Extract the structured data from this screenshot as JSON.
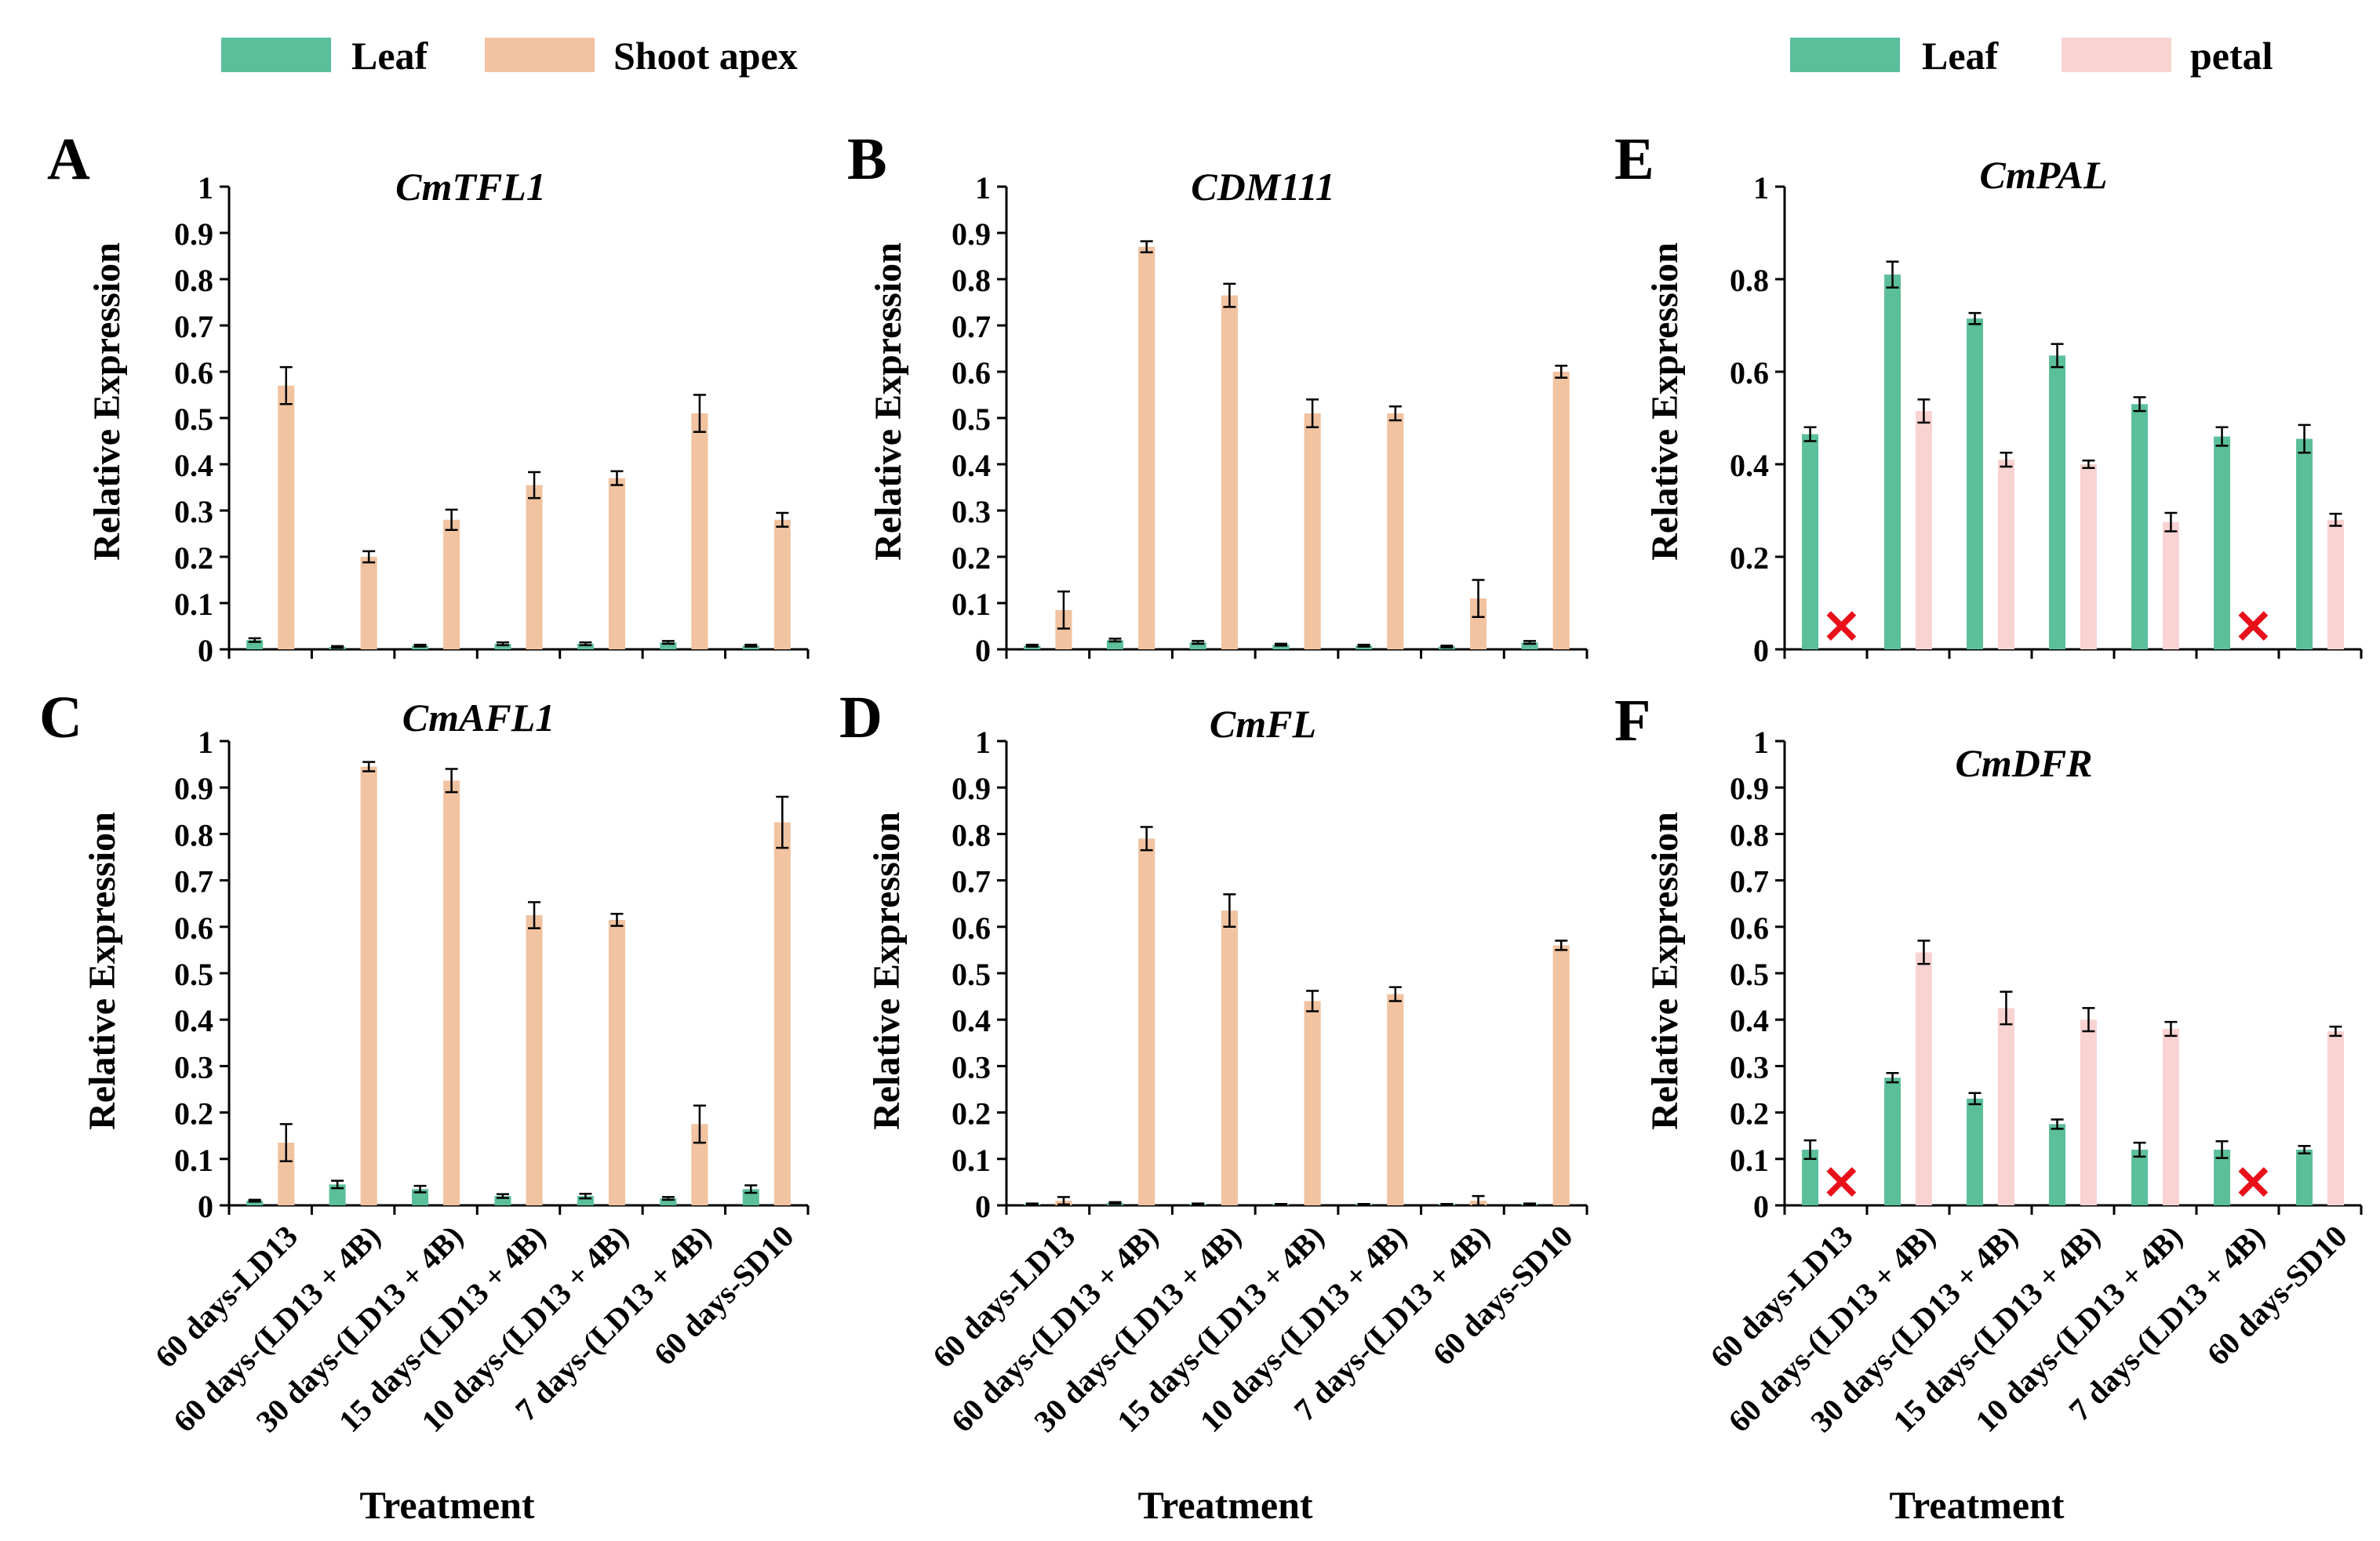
{
  "legends": {
    "left": [
      {
        "label": "Leaf",
        "color": "#5bbf9a"
      },
      {
        "label": "Shoot apex",
        "color": "#f1c3a1"
      }
    ],
    "right": [
      {
        "label": "Leaf",
        "color": "#5bbf9a"
      },
      {
        "label": "petal",
        "color": "#f9d2d2"
      }
    ]
  },
  "xlabel": "Treatment",
  "ylabel": "Relative Expression",
  "chart_data": [
    {
      "panel": "A",
      "title": "CmTFL1",
      "type": "bar",
      "categories": [
        "60 days-LD13",
        "60 days-(LD13 + 4B)",
        "30 days-(LD13 + 4B)",
        "15 days-(LD13 + 4B)",
        "10 days-(LD13 + 4B)",
        "7 days-(LD13 + 4B)",
        "60 days-SD10"
      ],
      "ylim": [
        0,
        1
      ],
      "yticks": [
        "0",
        "0.1",
        "0.2",
        "0.3",
        "0.4",
        "0.5",
        "0.6",
        "0.7",
        "0.8",
        "0.9",
        "1"
      ],
      "xlabel": "",
      "ylabel": "Relative Expression",
      "series": [
        {
          "name": "Leaf",
          "values": [
            0.02,
            0.005,
            0.008,
            0.012,
            0.012,
            0.015,
            0.008
          ],
          "errors": [
            0.004,
            0.002,
            0.002,
            0.003,
            0.003,
            0.003,
            0.002
          ]
        },
        {
          "name": "Shoot apex",
          "values": [
            0.57,
            0.2,
            0.28,
            0.355,
            0.37,
            0.51,
            0.28
          ],
          "errors": [
            0.04,
            0.012,
            0.022,
            0.028,
            0.015,
            0.04,
            0.015
          ]
        }
      ]
    },
    {
      "panel": "B",
      "title": "CDM111",
      "type": "bar",
      "categories": [
        "60 days-LD13",
        "60 days-(LD13 + 4B)",
        "30 days-(LD13 + 4B)",
        "15 days-(LD13 + 4B)",
        "10 days-(LD13 + 4B)",
        "7 days-(LD13 + 4B)",
        "60 days-SD10"
      ],
      "ylim": [
        0,
        1
      ],
      "yticks": [
        "0",
        "0.1",
        "0.2",
        "0.3",
        "0.4",
        "0.5",
        "0.6",
        "0.7",
        "0.8",
        "0.9",
        "1"
      ],
      "xlabel": "",
      "ylabel": "Relative Expression",
      "series": [
        {
          "name": "Leaf",
          "values": [
            0.008,
            0.02,
            0.015,
            0.01,
            0.008,
            0.006,
            0.015
          ],
          "errors": [
            0.002,
            0.003,
            0.003,
            0.002,
            0.002,
            0.002,
            0.003
          ]
        },
        {
          "name": "Shoot apex",
          "values": [
            0.085,
            0.87,
            0.765,
            0.51,
            0.51,
            0.11,
            0.6
          ],
          "errors": [
            0.04,
            0.012,
            0.025,
            0.03,
            0.015,
            0.04,
            0.013
          ]
        }
      ]
    },
    {
      "panel": "C",
      "title": "CmAFL1",
      "type": "bar",
      "categories": [
        "60 days-LD13",
        "60 days-(LD13 + 4B)",
        "30 days-(LD13 + 4B)",
        "15 days-(LD13 + 4B)",
        "10 days-(LD13 + 4B)",
        "7 days-(LD13 + 4B)",
        "60 days-SD10"
      ],
      "ylim": [
        0,
        1
      ],
      "yticks": [
        "0",
        "0.1",
        "0.2",
        "0.3",
        "0.4",
        "0.5",
        "0.6",
        "0.7",
        "0.8",
        "0.9",
        "1"
      ],
      "xlabel": "Treatment",
      "ylabel": "Relative Expression",
      "series": [
        {
          "name": "Leaf",
          "values": [
            0.01,
            0.045,
            0.035,
            0.02,
            0.02,
            0.015,
            0.035
          ],
          "errors": [
            0.002,
            0.008,
            0.007,
            0.004,
            0.005,
            0.003,
            0.008
          ]
        },
        {
          "name": "Shoot apex",
          "values": [
            0.135,
            0.945,
            0.915,
            0.625,
            0.615,
            0.175,
            0.825
          ],
          "errors": [
            0.04,
            0.01,
            0.025,
            0.028,
            0.013,
            0.04,
            0.055
          ]
        }
      ]
    },
    {
      "panel": "D",
      "title": "CmFL",
      "type": "bar",
      "categories": [
        "60 days-LD13",
        "60 days-(LD13 + 4B)",
        "30 days-(LD13 + 4B)",
        "15 days-(LD13 + 4B)",
        "10 days-(LD13 + 4B)",
        "7 days-(LD13 + 4B)",
        "60 days-SD10"
      ],
      "ylim": [
        0,
        1
      ],
      "yticks": [
        "0",
        "0.1",
        "0.2",
        "0.3",
        "0.4",
        "0.5",
        "0.6",
        "0.7",
        "0.8",
        "0.9",
        "1"
      ],
      "xlabel": "Treatment",
      "ylabel": "Relative Expression",
      "series": [
        {
          "name": "Leaf",
          "values": [
            0.003,
            0.005,
            0.003,
            0.002,
            0.002,
            0.002,
            0.003
          ],
          "errors": [
            0.001,
            0.002,
            0.001,
            0.001,
            0.001,
            0.001,
            0.001
          ]
        },
        {
          "name": "Shoot apex",
          "values": [
            0.01,
            0.79,
            0.635,
            0.44,
            0.455,
            0.01,
            0.56
          ],
          "errors": [
            0.008,
            0.025,
            0.035,
            0.022,
            0.015,
            0.01,
            0.01
          ]
        }
      ]
    },
    {
      "panel": "E",
      "title": "CmPAL",
      "type": "bar",
      "categories": [
        "60 days-LD13",
        "60 days-(LD13 + 4B)",
        "30 days-(LD13 + 4B)",
        "15 days-(LD13 + 4B)",
        "10 days-(LD13 + 4B)",
        "7 days-(LD13 + 4B)",
        "60 days-SD10"
      ],
      "ylim": [
        0,
        1
      ],
      "yticks": [
        "0",
        "0.2",
        "0.4",
        "0.6",
        "0.8",
        "1"
      ],
      "xlabel": "",
      "ylabel": "Relative Expression",
      "missing_marker": "✕",
      "series": [
        {
          "name": "Leaf",
          "values": [
            0.465,
            0.81,
            0.715,
            0.635,
            0.53,
            0.46,
            0.455
          ],
          "errors": [
            0.015,
            0.028,
            0.012,
            0.025,
            0.015,
            0.02,
            0.03
          ]
        },
        {
          "name": "petal",
          "values": [
            null,
            0.515,
            0.41,
            0.4,
            0.275,
            null,
            0.28
          ],
          "errors": [
            null,
            0.025,
            0.015,
            0.008,
            0.02,
            null,
            0.013
          ]
        }
      ]
    },
    {
      "panel": "F",
      "title": "CmDFR",
      "type": "bar",
      "categories": [
        "60 days-LD13",
        "60 days-(LD13 + 4B)",
        "30 days-(LD13 + 4B)",
        "15 days-(LD13 + 4B)",
        "10 days-(LD13 + 4B)",
        "7 days-(LD13 + 4B)",
        "60 days-SD10"
      ],
      "ylim": [
        0,
        1
      ],
      "yticks": [
        "0",
        "0.1",
        "0.2",
        "0.3",
        "0.4",
        "0.5",
        "0.6",
        "0.7",
        "0.8",
        "0.9",
        "1"
      ],
      "xlabel": "Treatment",
      "ylabel": "Relative Expression",
      "missing_marker": "✕",
      "series": [
        {
          "name": "Leaf",
          "values": [
            0.12,
            0.275,
            0.23,
            0.175,
            0.12,
            0.12,
            0.12
          ],
          "errors": [
            0.02,
            0.01,
            0.012,
            0.01,
            0.015,
            0.018,
            0.008
          ]
        },
        {
          "name": "petal",
          "values": [
            null,
            0.545,
            0.425,
            0.4,
            0.38,
            null,
            0.375
          ],
          "errors": [
            null,
            0.025,
            0.035,
            0.025,
            0.015,
            null,
            0.01
          ]
        }
      ]
    }
  ]
}
